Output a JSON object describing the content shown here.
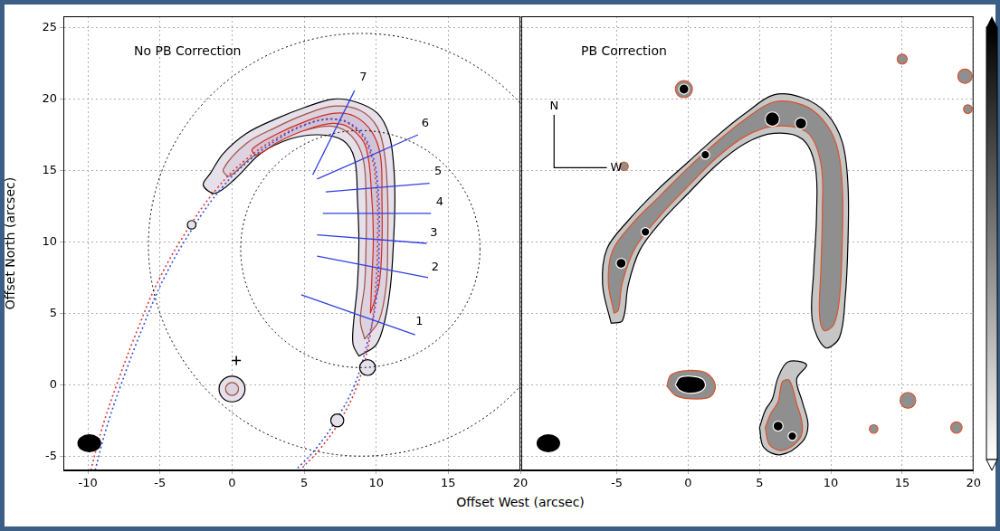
{
  "chart_data": [
    {
      "type": "scatter",
      "title": "No PB Correction",
      "x_label": "Offset West (arcsec)",
      "y_label": "Offset North (arcsec)",
      "xlim": [
        -11.7,
        20
      ],
      "ylim": [
        -6,
        25.8
      ],
      "xticks": [
        -10,
        -5,
        0,
        5,
        10,
        15,
        20
      ],
      "yticks": [
        -5,
        0,
        5,
        10,
        15,
        20,
        25
      ],
      "grid": true,
      "series": [
        {
          "type": "contour",
          "color": "#000000",
          "x": [
            8.8,
            10.0,
            10.6,
            11.0,
            11.2,
            11.3,
            11.2,
            10.9,
            10.1,
            8.6,
            7.0,
            5.0,
            3.0,
            1.0,
            -0.6,
            -1.5,
            -2.0,
            -1.2,
            0.2,
            2.0,
            4.0,
            6.0,
            7.7,
            8.5,
            8.7,
            8.8,
            8.7,
            8.4,
            8.4
          ],
          "y": [
            2.0,
            2.8,
            4.5,
            7.0,
            10.0,
            13.0,
            15.5,
            17.5,
            19.0,
            19.8,
            20.0,
            19.4,
            18.6,
            17.6,
            16.2,
            14.8,
            14.0,
            13.4,
            14.4,
            16.2,
            17.2,
            17.5,
            17.1,
            15.8,
            13.0,
            10.0,
            7.0,
            4.0,
            2.8
          ]
        },
        {
          "type": "contour",
          "color": "#a0523d",
          "x": [
            9.2,
            10.2,
            10.7,
            10.8,
            10.8,
            10.6,
            10.1,
            8.9,
            7.0,
            5.0,
            3.0,
            1.0,
            -0.6,
            -0.2,
            1.2,
            3.0,
            5.0,
            7.0,
            8.3,
            9.1,
            9.3,
            9.3,
            9.2,
            8.9
          ],
          "y": [
            3.2,
            4.5,
            7.0,
            10.0,
            13.0,
            16.0,
            18.0,
            19.2,
            19.5,
            18.9,
            18.0,
            16.9,
            15.1,
            14.6,
            15.8,
            17.0,
            17.8,
            18.1,
            17.4,
            15.8,
            13.0,
            10.0,
            7.0,
            4.5
          ]
        },
        {
          "type": "contour",
          "color": "#d42a1e",
          "x": [
            9.6,
            10.2,
            10.4,
            10.4,
            10.3,
            9.7,
            8.5,
            7.0,
            5.0,
            3.0,
            1.4,
            1.7,
            3.2,
            5.0,
            7.0,
            8.3,
            9.3,
            9.7,
            9.8,
            9.7
          ],
          "y": [
            5.0,
            7.0,
            10.0,
            13.0,
            16.0,
            17.7,
            18.8,
            19.0,
            18.4,
            17.5,
            16.5,
            16.1,
            17.0,
            17.8,
            18.3,
            17.9,
            16.6,
            13.0,
            10.0,
            7.5
          ]
        },
        {
          "type": "blob",
          "color": "#000000",
          "x": [
            -2.8,
            9.4,
            7.3,
            0.0
          ],
          "y": [
            11.2,
            1.2,
            -2.5,
            -0.3
          ],
          "r": [
            0.3,
            0.55,
            0.45,
            0.9
          ]
        },
        {
          "type": "blob",
          "color": "#a0523d",
          "x": [
            0.0
          ],
          "y": [
            -0.3
          ],
          "r": [
            0.45
          ]
        },
        {
          "type": "line",
          "color": "#e03030",
          "line_style": "dotted",
          "x": [
            -9.8,
            -9.0,
            -8.0,
            -6.5,
            -5.0,
            -3.0,
            -1.0,
            1.0,
            3.0,
            5.0,
            7.0,
            8.5,
            9.5,
            10.0,
            10.1,
            9.9,
            9.5,
            8.7,
            7.5,
            6.1,
            4.7
          ],
          "y": [
            -6,
            -3,
            0,
            4,
            7.5,
            11,
            13.8,
            15.8,
            17.2,
            18.2,
            18.6,
            18,
            16.5,
            14,
            10,
            6,
            3,
            0,
            -2.5,
            -4.5,
            -6
          ]
        },
        {
          "type": "line",
          "color": "#3050e0",
          "line_style": "dotted",
          "x": [
            -9.5,
            -8.7,
            -7.7,
            -6.2,
            -4.7,
            -2.7,
            -0.7,
            1.3,
            3.2,
            5.1,
            7.1,
            8.6,
            9.6,
            10.1,
            10.2,
            10.0,
            9.4,
            8.5,
            7.2,
            5.8,
            4.4
          ],
          "y": [
            -6,
            -3,
            0,
            4,
            7.5,
            11,
            13.8,
            15.8,
            17.2,
            18.2,
            18.6,
            18,
            16.5,
            14,
            10,
            6,
            3,
            0,
            -2.5,
            -4.5,
            -6
          ]
        },
        {
          "type": "circle",
          "color": "#000000",
          "line_style": "dotted",
          "x": [
            9.0,
            8.9
          ],
          "y": [
            9.8,
            9.5
          ],
          "r": [
            14.8,
            8.3
          ]
        },
        {
          "type": "segment",
          "color": "#3040e0",
          "x": [
            4.8,
            12.7
          ],
          "y": [
            6.3,
            3.5
          ],
          "label": "1",
          "label_x": 13.0,
          "label_y": 4.4
        },
        {
          "type": "segment",
          "color": "#3040e0",
          "x": [
            5.9,
            13.6
          ],
          "y": [
            9.0,
            7.5
          ],
          "label": "2",
          "label_x": 14.1,
          "label_y": 8.2
        },
        {
          "type": "segment",
          "color": "#3040e0",
          "x": [
            5.9,
            13.5
          ],
          "y": [
            10.5,
            9.9
          ],
          "label": "3",
          "label_x": 14.0,
          "label_y": 10.6
        },
        {
          "type": "segment",
          "color": "#3040e0",
          "x": [
            6.3,
            13.8
          ],
          "y": [
            12.0,
            12.0
          ],
          "label": "4",
          "label_x": 14.4,
          "label_y": 12.8
        },
        {
          "type": "segment",
          "color": "#3040e0",
          "x": [
            6.5,
            13.7
          ],
          "y": [
            13.5,
            14.1
          ],
          "label": "5",
          "label_x": 14.3,
          "label_y": 14.9
        },
        {
          "type": "segment",
          "color": "#3040e0",
          "x": [
            5.9,
            12.9
          ],
          "y": [
            14.4,
            17.5
          ],
          "label": "6",
          "label_x": 13.4,
          "label_y": 18.3
        },
        {
          "type": "segment",
          "color": "#3040e0",
          "x": [
            5.6,
            8.5
          ],
          "y": [
            14.7,
            20.6
          ],
          "label": "7",
          "label_x": 9.1,
          "label_y": 21.5
        },
        {
          "type": "scatter",
          "marker": "plus",
          "color": "#000000",
          "x": [
            0.3
          ],
          "y": [
            1.7
          ]
        },
        {
          "type": "beam",
          "color": "#000000",
          "x": [
            -9.9
          ],
          "y": [
            -4.1
          ],
          "width": [
            1.65
          ],
          "height": [
            1.27
          ]
        }
      ]
    },
    {
      "type": "scatter",
      "title": "PB Correction",
      "xlim": [
        -11.7,
        20
      ],
      "ylim": [
        -6,
        25.8
      ],
      "xticks": [
        -5,
        0,
        5,
        10,
        15,
        20
      ],
      "yticks": [
        -5,
        0,
        5,
        10,
        15,
        20,
        25
      ],
      "grid": true,
      "tick_labels": "x",
      "series": [
        {
          "type": "contour",
          "color": "#000000",
          "x": [
            -5.4,
            -6.0,
            -5.7,
            -4.2,
            -2.2,
            0.0,
            2.0,
            4.0,
            6.0,
            8.0,
            9.7,
            10.8,
            11.2,
            11.2,
            11.0,
            10.6,
            9.6,
            8.7,
            8.8,
            9.0,
            8.9,
            8.0,
            6.0,
            4.0,
            2.0,
            0.0,
            -2.0,
            -3.4,
            -4.2,
            -4.6
          ],
          "y": [
            4.3,
            7.0,
            9.5,
            11.5,
            13.6,
            15.6,
            17.4,
            19.0,
            20.3,
            20.1,
            19.0,
            17.0,
            14.0,
            10.0,
            6.0,
            3.3,
            2.6,
            4.5,
            8.0,
            12.0,
            15.3,
            17.2,
            17.6,
            16.9,
            15.4,
            13.4,
            11.3,
            9.4,
            7.0,
            4.5
          ]
        },
        {
          "type": "contour",
          "color": "#d9542b",
          "x": [
            -5.2,
            -5.6,
            -5.3,
            -3.9,
            -2.0,
            0.0,
            2.0,
            4.0,
            6.0,
            8.0,
            9.4,
            10.4,
            10.8,
            10.8,
            10.6,
            10.2,
            9.5,
            9.2,
            9.3,
            9.4,
            9.3,
            8.3,
            6.0,
            4.0,
            2.0,
            0.0,
            -2.0,
            -3.7,
            -4.6,
            -4.9
          ],
          "y": [
            5.0,
            7.2,
            9.4,
            11.3,
            13.2,
            15.2,
            17.0,
            18.6,
            19.8,
            19.6,
            18.6,
            16.8,
            14.0,
            10.0,
            6.0,
            4.2,
            3.8,
            5.0,
            8.0,
            12.0,
            15.5,
            17.7,
            18.1,
            17.4,
            15.9,
            13.9,
            11.8,
            9.6,
            7.2,
            5.2
          ]
        },
        {
          "type": "contour",
          "color": "#000000",
          "x": [
            5.0,
            5.3,
            6.5,
            8.0,
            8.4,
            8.0,
            7.6,
            8.3,
            7.0,
            6.3,
            5.9,
            5.4
          ],
          "y": [
            -3.0,
            -4.4,
            -4.9,
            -4.0,
            -2.8,
            -1.2,
            0.4,
            1.4,
            1.6,
            0.5,
            -1.0,
            -1.8
          ]
        },
        {
          "type": "contour",
          "color": "#d9542b",
          "x": [
            5.4,
            5.7,
            6.6,
            7.8,
            8.0,
            7.6,
            7.1,
            6.6,
            6.3,
            5.8
          ],
          "y": [
            -3.0,
            -4.2,
            -4.6,
            -3.8,
            -2.8,
            -1.3,
            0.3,
            0.2,
            -1.2,
            -2.0
          ]
        },
        {
          "type": "contour",
          "color": "#d9542b",
          "x": [
            -1.5,
            -1.2,
            0.0,
            1.3,
            1.9,
            1.6,
            0.6,
            -0.8
          ],
          "y": [
            -0.1,
            0.7,
            1.0,
            0.8,
            0.0,
            -0.8,
            -1.0,
            -0.8
          ]
        },
        {
          "type": "contour",
          "color": "#ffffff",
          "x": [
            -0.9,
            -0.6,
            0.2,
            1.0,
            1.2,
            0.8,
            0.0,
            -0.6
          ],
          "y": [
            0.0,
            0.5,
            0.6,
            0.4,
            -0.1,
            -0.5,
            -0.6,
            -0.4
          ]
        },
        {
          "type": "blob",
          "color": "#d9542b",
          "x": [
            15.0,
            19.4,
            19.6,
            15.4,
            18.8,
            13.0,
            -4.5,
            -0.3
          ],
          "y": [
            22.8,
            21.6,
            19.3,
            -1.1,
            -3.0,
            -3.1,
            15.3,
            20.7
          ],
          "r": [
            0.35,
            0.5,
            0.3,
            0.55,
            0.4,
            0.3,
            0.3,
            0.6
          ]
        },
        {
          "type": "blob",
          "color": "#ffffff",
          "x": [
            5.9,
            7.9,
            1.2,
            -4.7,
            -3.0,
            -0.3,
            6.3,
            7.3
          ],
          "y": [
            18.6,
            18.3,
            16.1,
            8.5,
            10.7,
            20.7,
            -2.9,
            -3.6
          ],
          "r": [
            0.5,
            0.4,
            0.3,
            0.35,
            0.3,
            0.35,
            0.35,
            0.3
          ]
        },
        {
          "type": "compass",
          "color": "#000000",
          "x": [
            -9.4
          ],
          "y": [
            15.2
          ],
          "length": [
            3.7
          ],
          "labels": [
            "N",
            "W"
          ]
        },
        {
          "type": "beam",
          "color": "#000000",
          "x": [
            -9.8
          ],
          "y": [
            -4.1
          ],
          "width": [
            1.65
          ],
          "height": [
            1.27
          ]
        }
      ]
    }
  ]
}
